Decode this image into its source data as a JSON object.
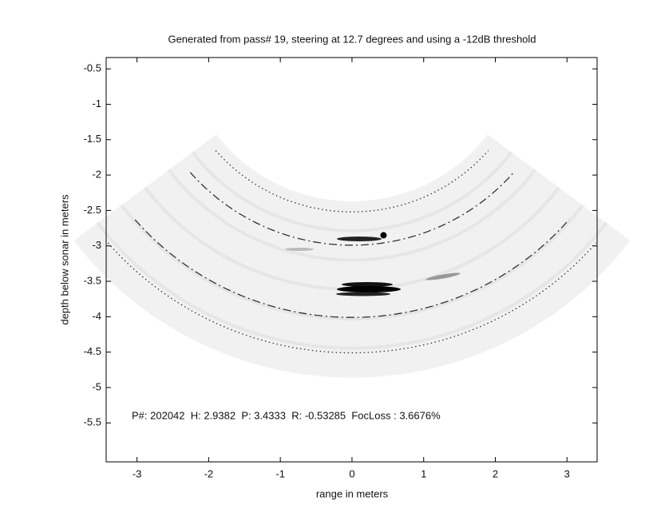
{
  "chart_data": {
    "type": "sonar-sector",
    "title": "Generated from pass# 19, steering at 12.7 degrees and using a -12dB threshold",
    "xlabel": "range in meters",
    "ylabel": "depth below sonar in meters",
    "annotation": "P#: 202042  H: 2.9382  P: 3.4333  R: -0.53285  FocLoss : 3.6676%",
    "xlim": [
      -3.43,
      3.42
    ],
    "ylim": [
      -6.05,
      -0.34
    ],
    "xticks": [
      -3,
      -2,
      -1,
      0,
      1,
      2,
      3
    ],
    "yticks": [
      -0.5,
      -1,
      -1.5,
      -2,
      -2.5,
      -3,
      -3.5,
      -4,
      -4.5,
      -5,
      -5.5
    ],
    "sector_half_angle": 49,
    "arcs": [
      {
        "radius": 2.52,
        "style": "dotted"
      },
      {
        "radius": 2.99,
        "style": "dashdot"
      },
      {
        "radius": 4.01,
        "style": "dashdot"
      },
      {
        "radius": 4.51,
        "style": "dotted"
      }
    ],
    "marker": {
      "x": 0.44,
      "y": -2.85
    }
  }
}
